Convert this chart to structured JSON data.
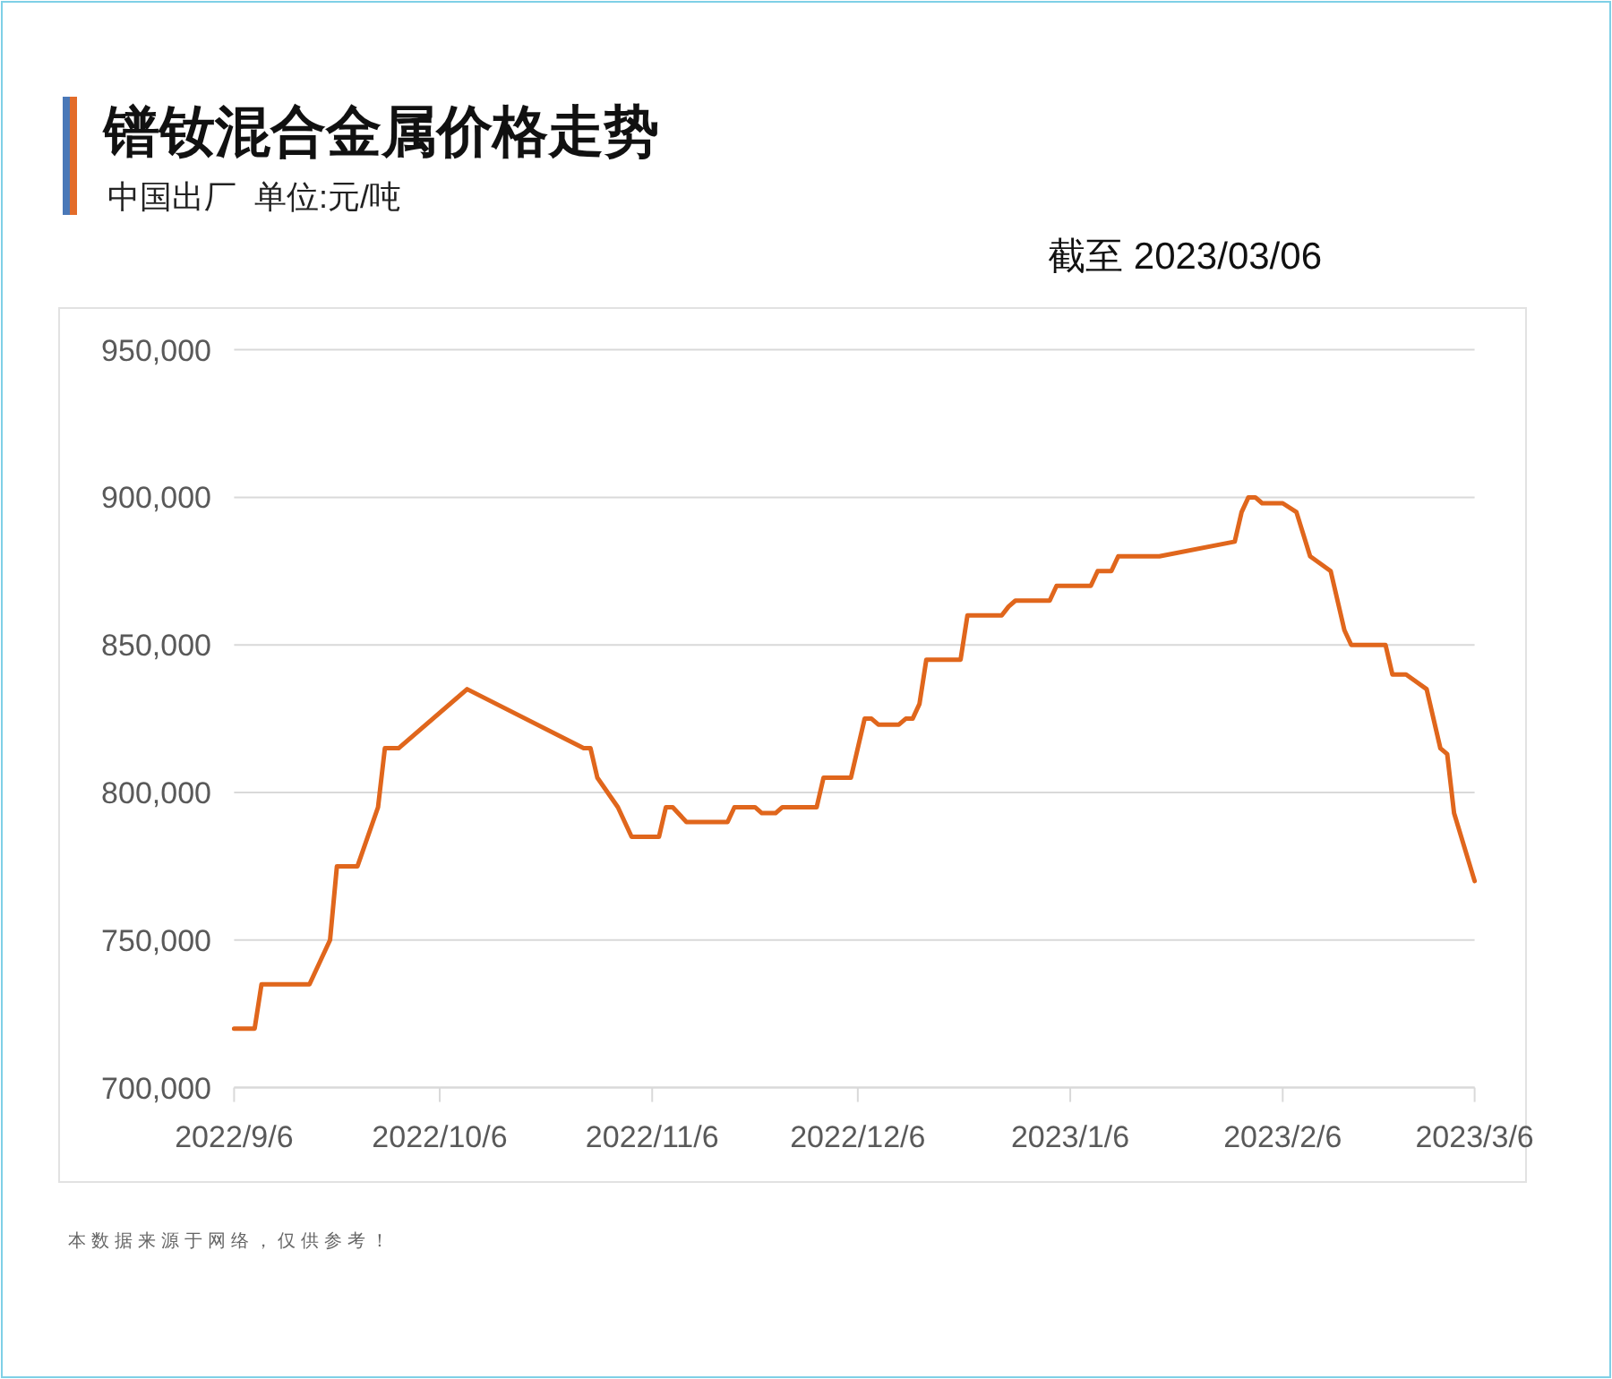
{
  "chart_data": {
    "type": "line",
    "title": "镨钕混合金属价格走势",
    "subtitle": "中国出厂  单位:元/吨",
    "annotations": [
      "截至 2023/03/06",
      "本数据来源于网络，仅供参考！"
    ],
    "color": "#e0661c",
    "grid": "y",
    "marker": "none",
    "line_style": "solid",
    "xlim": [
      "2022-09-06",
      "2023-03-06"
    ],
    "ylim": [
      700000,
      950000
    ],
    "xticks": [
      {
        "value": "2022-09-06",
        "label": "2022/9/6"
      },
      {
        "value": "2022-10-06",
        "label": "2022/10/6"
      },
      {
        "value": "2022-11-06",
        "label": "2022/11/6"
      },
      {
        "value": "2022-12-06",
        "label": "2022/12/6"
      },
      {
        "value": "2023-01-06",
        "label": "2023/1/6"
      },
      {
        "value": "2023-02-06",
        "label": "2023/2/6"
      },
      {
        "value": "2023-03-06",
        "label": "2023/3/6"
      }
    ],
    "yticks": [
      {
        "value": 700000,
        "label": "700,000"
      },
      {
        "value": 750000,
        "label": "750,000"
      },
      {
        "value": 800000,
        "label": "800,000"
      },
      {
        "value": 850000,
        "label": "850,000"
      },
      {
        "value": 900000,
        "label": "900,000"
      },
      {
        "value": 950000,
        "label": "950,000"
      }
    ],
    "x": [
      "2022-09-06",
      "2022-09-09",
      "2022-09-10",
      "2022-09-17",
      "2022-09-20",
      "2022-09-21",
      "2022-09-24",
      "2022-09-27",
      "2022-09-28",
      "2022-09-30",
      "2022-10-10",
      "2022-10-27",
      "2022-10-28",
      "2022-10-29",
      "2022-11-01",
      "2022-11-03",
      "2022-11-07",
      "2022-11-08",
      "2022-11-09",
      "2022-11-11",
      "2022-11-17",
      "2022-11-18",
      "2022-11-21",
      "2022-11-22",
      "2022-11-24",
      "2022-11-25",
      "2022-11-30",
      "2022-12-01",
      "2022-12-05",
      "2022-12-07",
      "2022-12-08",
      "2022-12-09",
      "2022-12-12",
      "2022-12-13",
      "2022-12-14",
      "2022-12-15",
      "2022-12-16",
      "2022-12-21",
      "2022-12-22",
      "2022-12-27",
      "2022-12-28",
      "2022-12-29",
      "2023-01-03",
      "2023-01-04",
      "2023-01-09",
      "2023-01-10",
      "2023-01-12",
      "2023-01-13",
      "2023-01-19",
      "2023-01-30",
      "2023-01-31",
      "2023-02-01",
      "2023-02-02",
      "2023-02-03",
      "2023-02-06",
      "2023-02-08",
      "2023-02-10",
      "2023-02-13",
      "2023-02-15",
      "2023-02-16",
      "2023-02-21",
      "2023-02-22",
      "2023-02-24",
      "2023-02-27",
      "2023-03-01",
      "2023-03-02",
      "2023-03-03",
      "2023-03-06"
    ],
    "values": [
      720000,
      720000,
      735000,
      735000,
      750000,
      775000,
      775000,
      795000,
      815000,
      815000,
      835000,
      815000,
      815000,
      805000,
      795000,
      785000,
      785000,
      795000,
      795000,
      790000,
      790000,
      795000,
      795000,
      793000,
      793000,
      795000,
      795000,
      805000,
      805000,
      825000,
      825000,
      823000,
      823000,
      825000,
      825000,
      830000,
      845000,
      845000,
      860000,
      860000,
      863000,
      865000,
      865000,
      870000,
      870000,
      875000,
      875000,
      880000,
      880000,
      885000,
      895000,
      900000,
      900000,
      898000,
      898000,
      895000,
      880000,
      875000,
      855000,
      850000,
      850000,
      840000,
      840000,
      835000,
      815000,
      813000,
      793000,
      770000
    ]
  }
}
